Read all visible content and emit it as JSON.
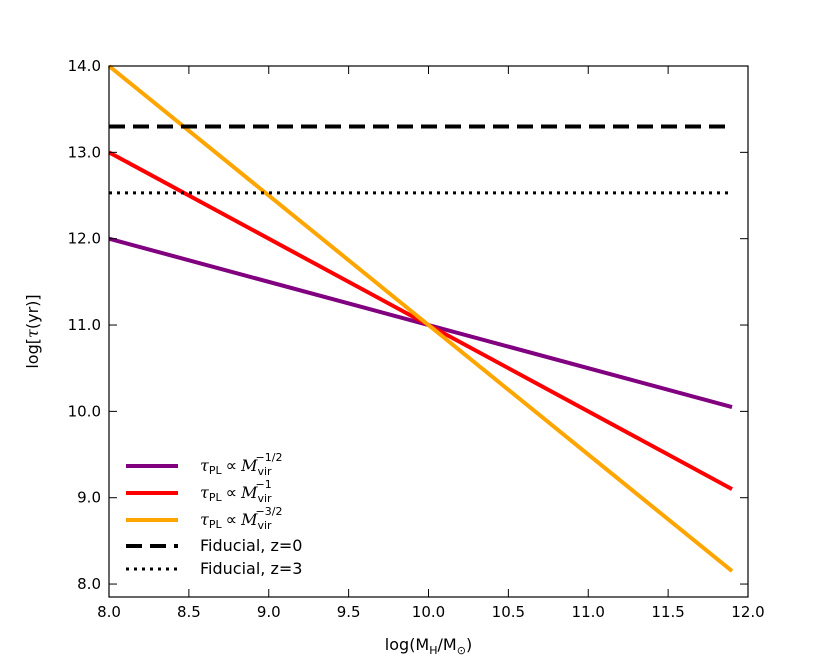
{
  "chart_data": {
    "type": "line",
    "xlabel": {
      "main": "log(M",
      "sub1": "H",
      "mid": "/M",
      "sub2": "⊙",
      "end": ")"
    },
    "ylabel": {
      "pre": "log[",
      "tau": "τ",
      "post": "(yr)]"
    },
    "xlim": [
      8.0,
      12.0
    ],
    "ylim": [
      7.85,
      14.0
    ],
    "xticks": [
      8.0,
      8.5,
      9.0,
      9.5,
      10.0,
      10.5,
      11.0,
      11.5,
      12.0
    ],
    "xtick_labels": [
      "8.0",
      "8.5",
      "9.0",
      "9.5",
      "10.0",
      "10.5",
      "11.0",
      "11.5",
      "12.0"
    ],
    "yticks": [
      8.0,
      9.0,
      10.0,
      11.0,
      12.0,
      13.0,
      14.0
    ],
    "ytick_labels": [
      "8.0",
      "9.0",
      "10.0",
      "11.0",
      "12.0",
      "13.0",
      "14.0"
    ],
    "legend_position": "bottom-left",
    "series": [
      {
        "name": "tau_PL ∝ M_vir^{-1/2}",
        "tau": "τ",
        "sub": "PL",
        "prop": "∝",
        "M": "M",
        "msub": "vir",
        "exp": "−1/2",
        "color": "#800080",
        "style": "solid",
        "x": [
          8.0,
          11.9
        ],
        "y": [
          12.0,
          10.05
        ]
      },
      {
        "name": "tau_PL ∝ M_vir^{-1}",
        "tau": "τ",
        "sub": "PL",
        "prop": "∝",
        "M": "M",
        "msub": "vir",
        "exp": "−1",
        "color": "#ff0000",
        "style": "solid",
        "x": [
          8.0,
          11.9
        ],
        "y": [
          13.0,
          9.1
        ]
      },
      {
        "name": "tau_PL ∝ M_vir^{-3/2}",
        "tau": "τ",
        "sub": "PL",
        "prop": "∝",
        "M": "M",
        "msub": "vir",
        "exp": "−3/2",
        "color": "#ffa500",
        "style": "solid",
        "x": [
          8.0,
          11.9
        ],
        "y": [
          14.0,
          8.15
        ]
      },
      {
        "name": "Fiducial, z=0",
        "label": "Fiducial, z=0",
        "color": "#000000",
        "style": "dashed",
        "x": [
          8.0,
          11.9
        ],
        "y": [
          13.3,
          13.3
        ]
      },
      {
        "name": "Fiducial, z=3",
        "label": "Fiducial, z=3",
        "color": "#000000",
        "style": "dotted",
        "x": [
          8.0,
          11.9
        ],
        "y": [
          12.53,
          12.53
        ]
      }
    ]
  }
}
